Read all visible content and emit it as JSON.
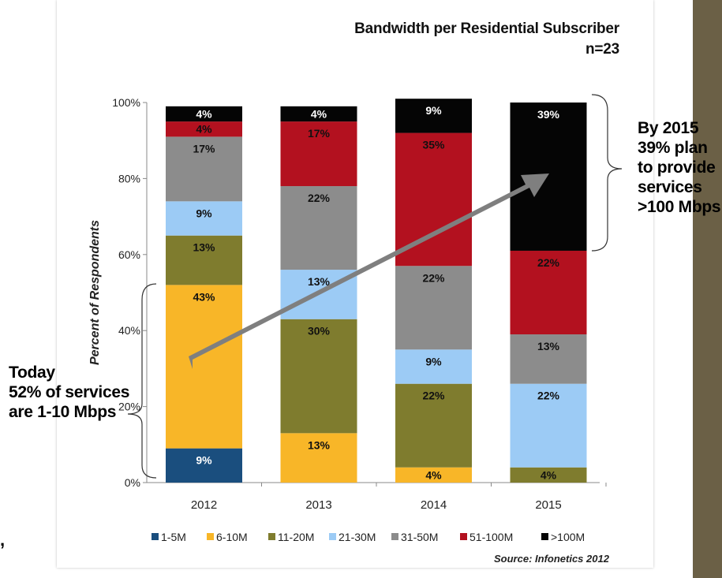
{
  "chart_data": {
    "type": "bar",
    "stacked": true,
    "title": "Bandwidth per Residential Subscriber",
    "subtitle": "n=23",
    "xlabel": "",
    "ylabel": "Percent of Respondents",
    "ylim": [
      0,
      100
    ],
    "yticks": [
      "0%",
      "20%",
      "40%",
      "60%",
      "80%",
      "100%"
    ],
    "categories": [
      "2012",
      "2013",
      "2014",
      "2015"
    ],
    "series": [
      {
        "name": "1-5M",
        "color": "#1a4e7e",
        "values": [
          9,
          0,
          0,
          0
        ]
      },
      {
        "name": "6-10M",
        "color": "#f8b628",
        "values": [
          43,
          13,
          4,
          0
        ]
      },
      {
        "name": "11-20M",
        "color": "#7f7c2e",
        "values": [
          13,
          30,
          22,
          4
        ]
      },
      {
        "name": "21-30M",
        "color": "#9ccbf5",
        "values": [
          9,
          13,
          9,
          22
        ]
      },
      {
        "name": "31-50M",
        "color": "#8c8c8c",
        "values": [
          17,
          22,
          22,
          13
        ]
      },
      {
        "name": "51-100M",
        "color": "#b3111f",
        "values": [
          4,
          17,
          35,
          22
        ]
      },
      {
        "name": ">100M",
        "color": "#050505",
        "values": [
          4,
          4,
          9,
          39
        ]
      }
    ],
    "data_labels": [
      [
        "9%",
        "43%",
        "13%",
        "9%",
        "17%",
        "4%",
        "4%"
      ],
      [
        "",
        "13%",
        "30%",
        "13%",
        "22%",
        "17%",
        "4%"
      ],
      [
        "",
        "4%",
        "22%",
        "9%",
        "22%",
        "35%",
        "9%"
      ],
      [
        "",
        "",
        "4%",
        "22%",
        "13%",
        "22%",
        "39%"
      ]
    ],
    "legend_position": "bottom",
    "source": "Source: Infonetics 2012"
  },
  "annotations": {
    "right_lines": [
      "By 2015",
      "39% plan",
      "to provide",
      "services",
      ">100 Mbps"
    ],
    "left_lines": [
      "Today",
      "52% of services",
      "are 1-10 Mbps"
    ]
  },
  "colors": {
    "arrow": "#7f7f7f",
    "accent_strip": "#6b6046"
  }
}
